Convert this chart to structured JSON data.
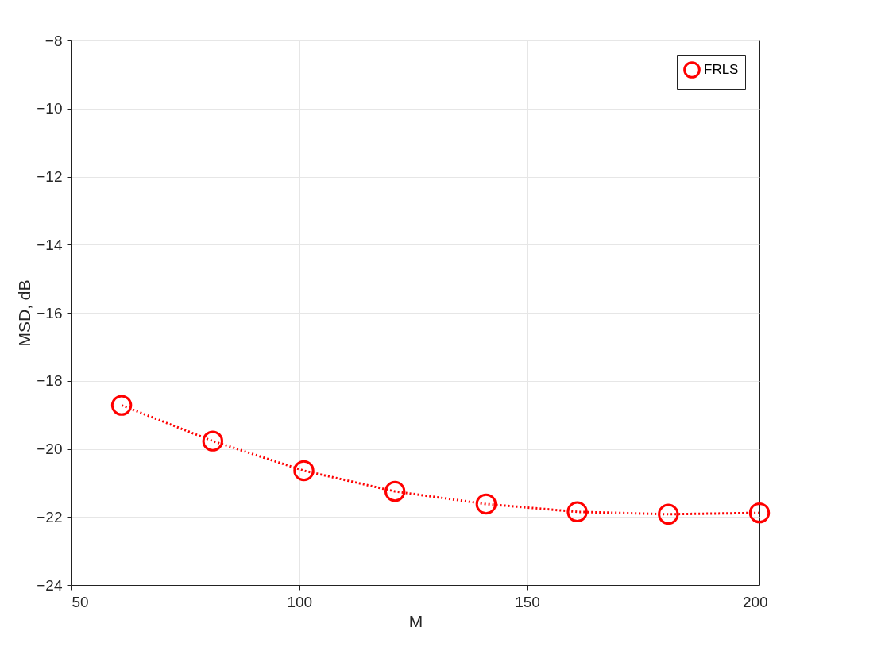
{
  "chart_data": {
    "type": "line",
    "xlabel": "M",
    "ylabel": "MSD, dB",
    "x": [
      61,
      81,
      101,
      121,
      141,
      161,
      181,
      201
    ],
    "series": [
      {
        "name": "FRLS",
        "color": "#ff0000",
        "values": [
          -18.72,
          -19.77,
          -20.64,
          -21.25,
          -21.62,
          -21.85,
          -21.92,
          -21.88
        ]
      }
    ],
    "xlim": [
      50,
      201
    ],
    "xticks": [
      50,
      100,
      150,
      200
    ],
    "ylim": [
      -24,
      -8
    ],
    "yticks": [
      -24,
      -22,
      -20,
      -18,
      -16,
      -14,
      -12,
      -10,
      -8
    ],
    "grid": true,
    "legend": "top right",
    "marker": "circle",
    "line_style": "dotted"
  }
}
